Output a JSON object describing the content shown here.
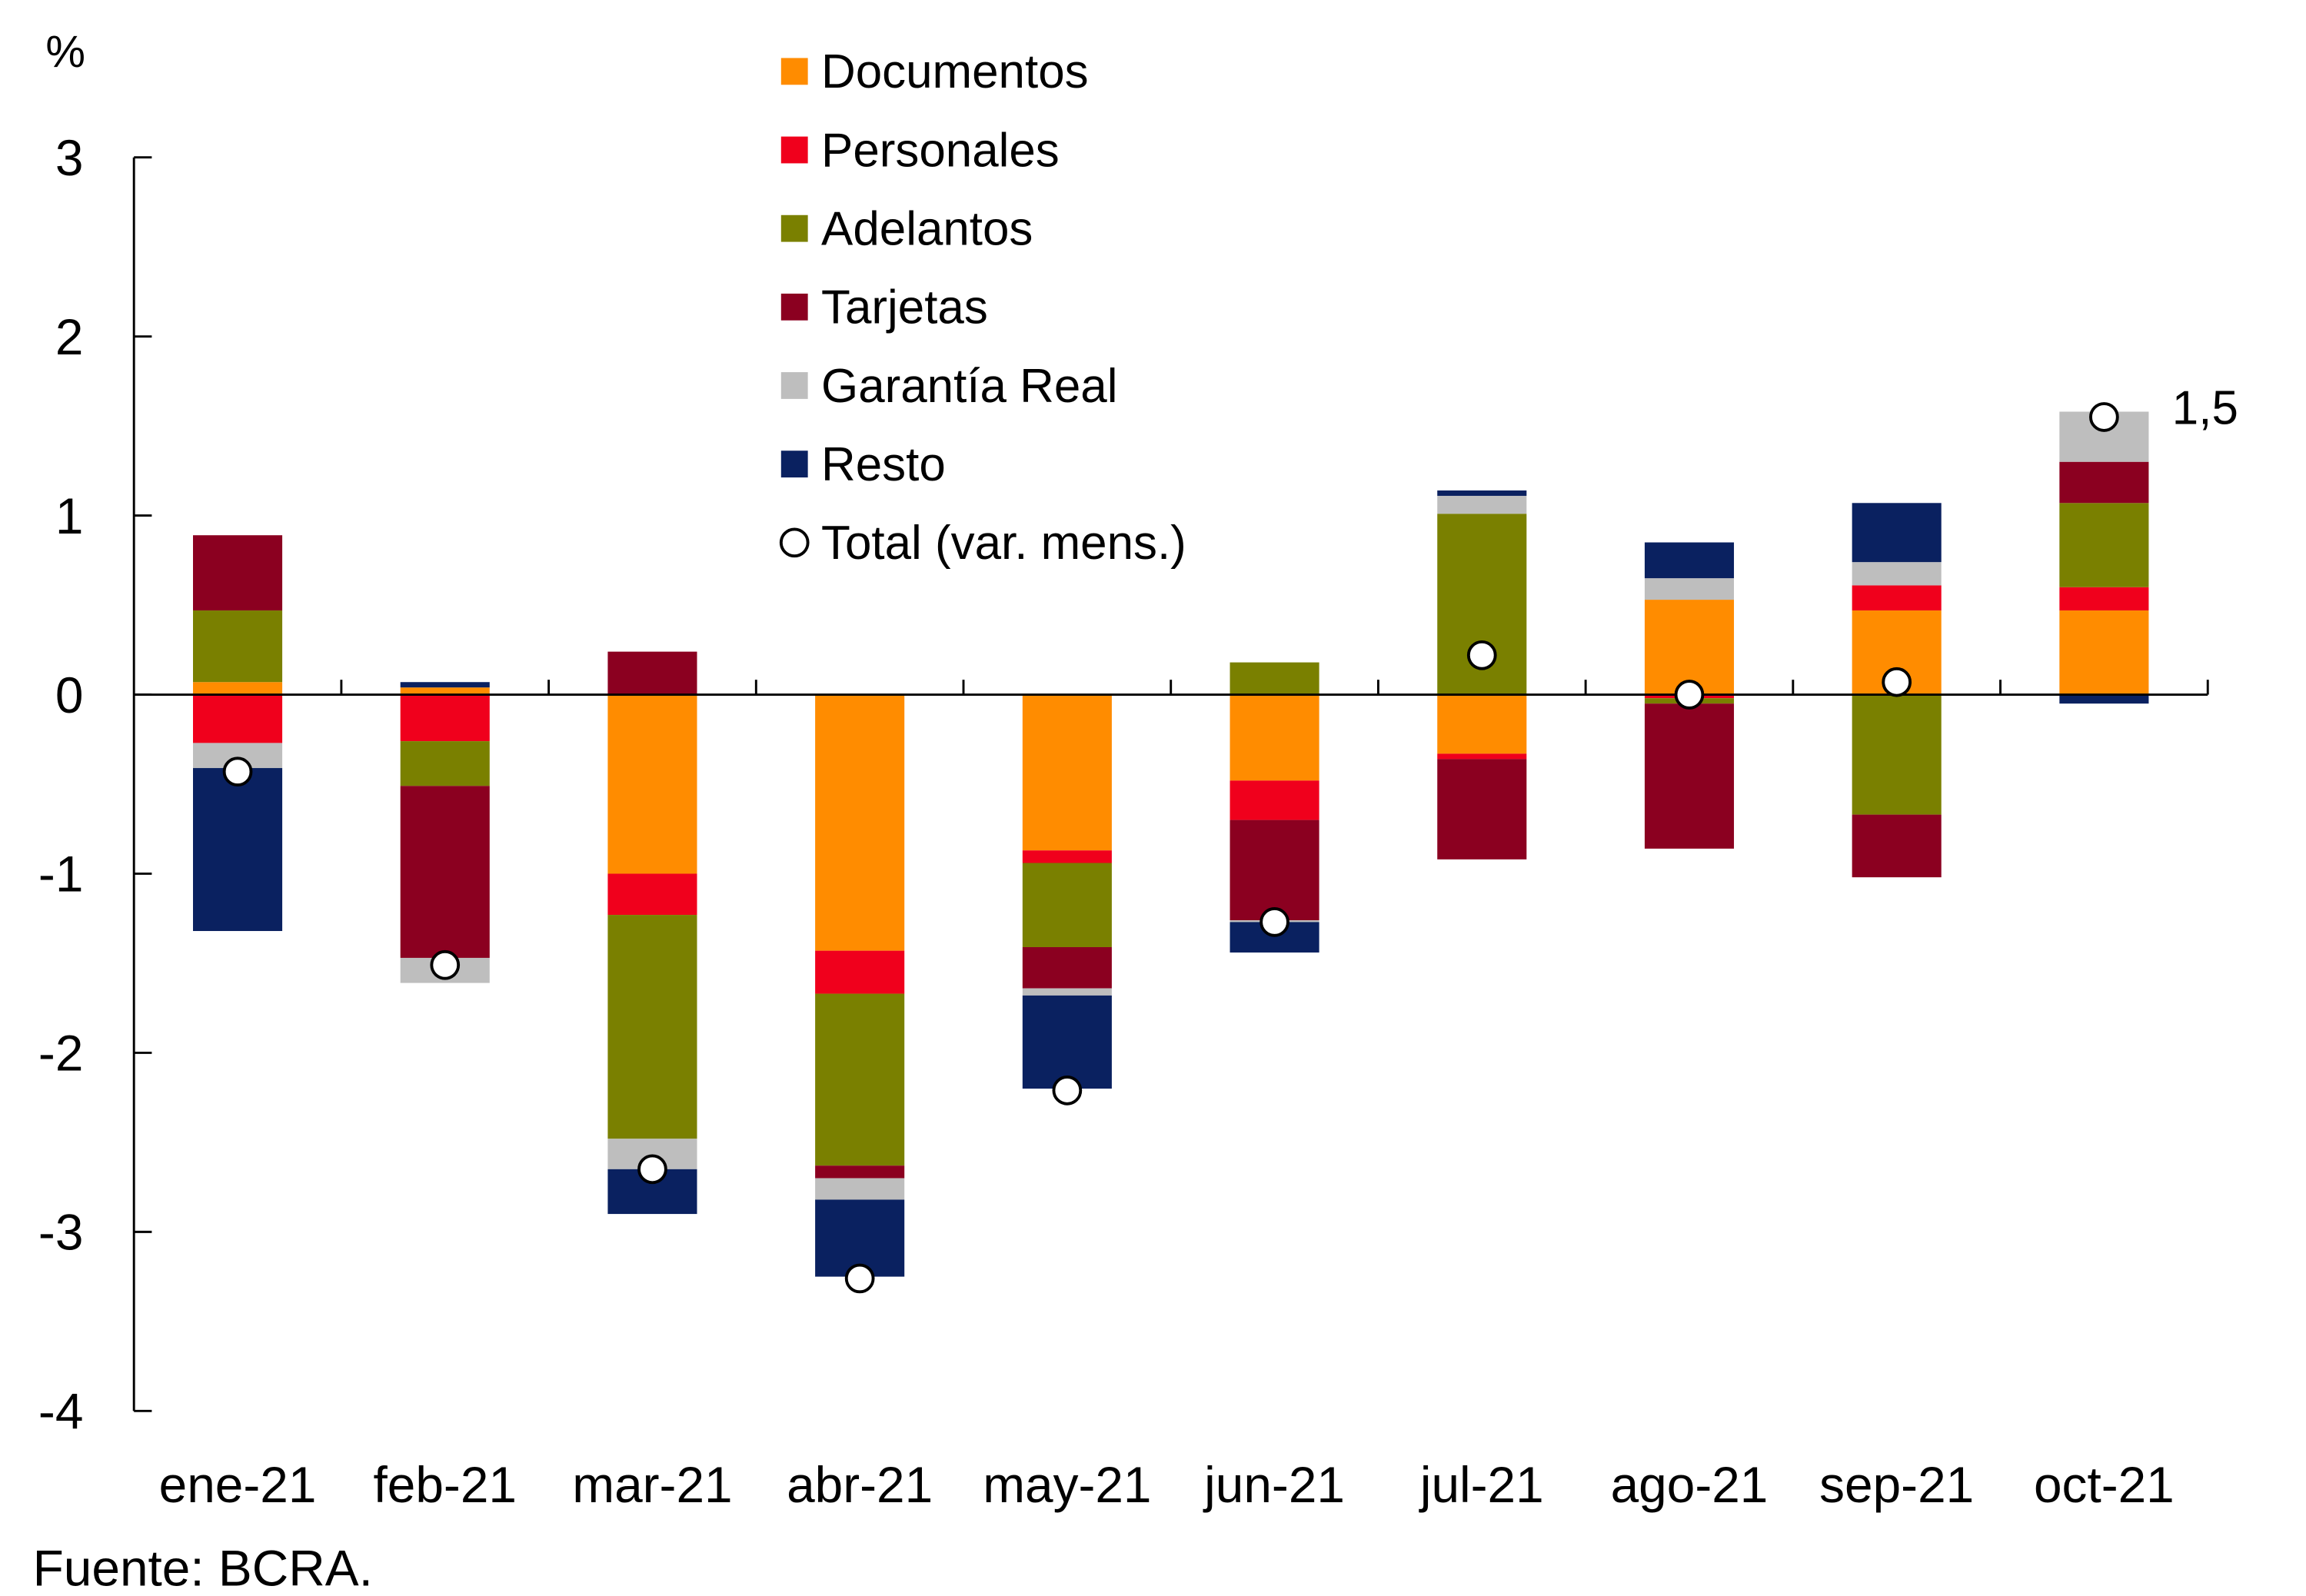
{
  "chart_data": {
    "type": "bar",
    "stacked": true,
    "ylabel": "%",
    "ylim": [
      -4,
      3
    ],
    "yticks": [
      "3",
      "2",
      "1",
      "0",
      "-1",
      "-2",
      "-3",
      "-4"
    ],
    "ytick_values": [
      3,
      2,
      1,
      0,
      -1,
      -2,
      -3,
      -4
    ],
    "categories": [
      "ene-21",
      "feb-21",
      "mar-21",
      "abr-21",
      "may-21",
      "jun-21",
      "jul-21",
      "ago-21",
      "sep-21",
      "oct-21"
    ],
    "legend_placement": "top-center",
    "series": [
      {
        "name": "Documentos",
        "color": "#FF8C00",
        "values": [
          0.07,
          0.04,
          -1.0,
          -1.43,
          -0.87,
          -0.48,
          -0.33,
          0.53,
          0.47,
          0.47
        ]
      },
      {
        "name": "Personales",
        "color": "#F0001C",
        "values": [
          -0.27,
          -0.26,
          -0.23,
          -0.24,
          -0.07,
          -0.22,
          -0.03,
          -0.02,
          0.14,
          0.13
        ]
      },
      {
        "name": "Adelantos",
        "color": "#7A8000",
        "values": [
          0.4,
          -0.25,
          -1.25,
          -0.96,
          -0.47,
          0.18,
          1.01,
          -0.03,
          -0.67,
          0.47
        ]
      },
      {
        "name": "Tarjetas",
        "color": "#8B0020",
        "values": [
          0.42,
          -0.96,
          0.24,
          -0.07,
          -0.23,
          -0.56,
          -0.56,
          -0.81,
          -0.35,
          0.23
        ]
      },
      {
        "name": "Garantía Real",
        "color": "#BEBEBE",
        "values": [
          -0.14,
          -0.14,
          -0.17,
          -0.12,
          -0.04,
          -0.01,
          0.1,
          0.12,
          0.13,
          0.28
        ]
      },
      {
        "name": "Resto",
        "color": "#0A2160",
        "values": [
          -0.91,
          0.03,
          -0.25,
          -0.43,
          -0.52,
          -0.17,
          0.03,
          0.2,
          0.33,
          -0.05
        ]
      }
    ],
    "total": {
      "name": "Total (var. mens.)",
      "values": [
        -0.43,
        -1.51,
        -2.65,
        -3.26,
        -2.21,
        -1.27,
        0.22,
        0.0,
        0.07,
        1.55
      ]
    },
    "annotation": "1,5"
  },
  "source": "Fuente: BCRA."
}
